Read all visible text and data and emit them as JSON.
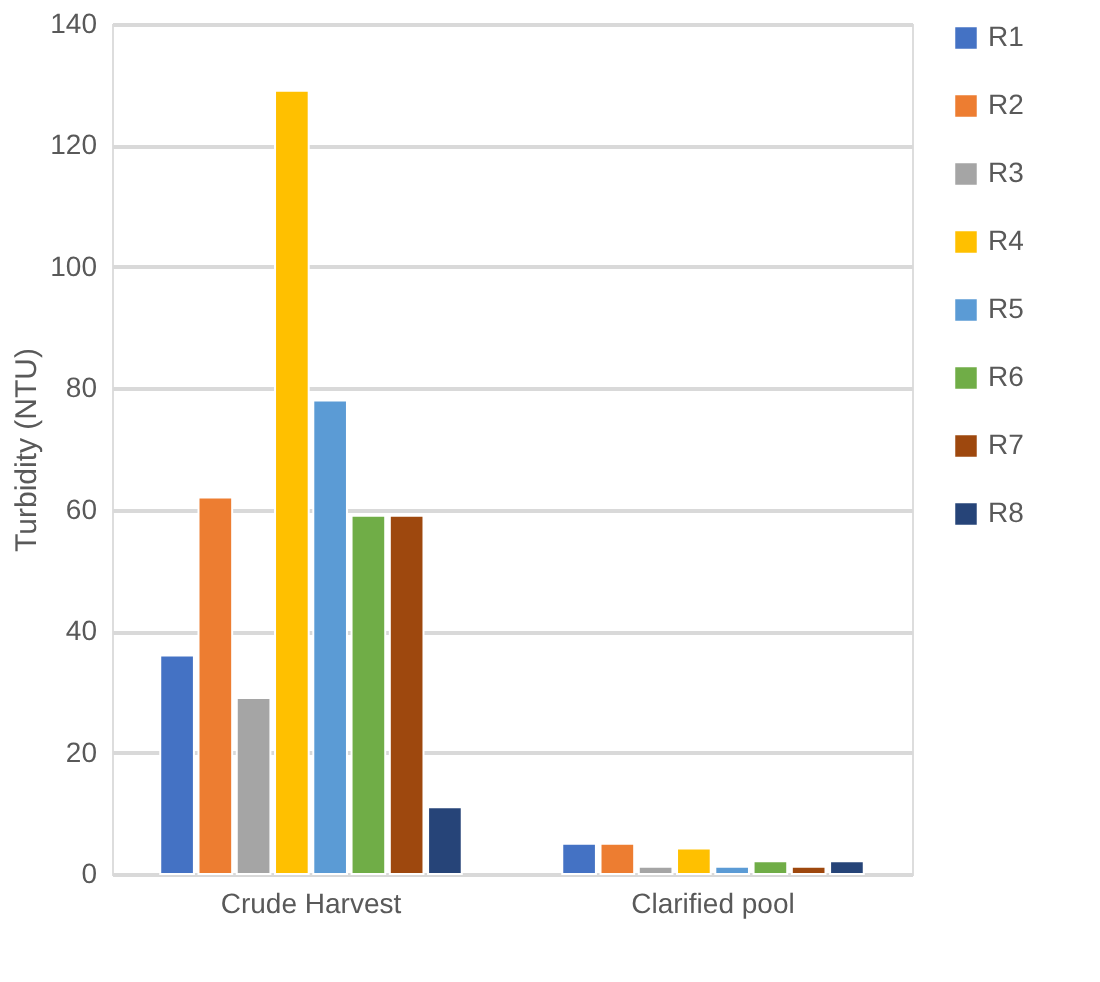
{
  "chart_data": {
    "type": "bar",
    "ylabel": "Turbidity (NTU)",
    "categories": [
      "Crude Harvest",
      "Clarified pool"
    ],
    "series": [
      {
        "name": "R1",
        "color": "#4472c4",
        "values": [
          36,
          5
        ]
      },
      {
        "name": "R2",
        "color": "#ed7d31",
        "values": [
          62,
          5
        ]
      },
      {
        "name": "R3",
        "color": "#a5a5a5",
        "values": [
          29,
          1.2
        ]
      },
      {
        "name": "R4",
        "color": "#ffc000",
        "values": [
          129,
          4.2
        ]
      },
      {
        "name": "R5",
        "color": "#5b9bd5",
        "values": [
          78,
          1.2
        ]
      },
      {
        "name": "R6",
        "color": "#70ad47",
        "values": [
          59,
          2.1
        ]
      },
      {
        "name": "R7",
        "color": "#9e480e",
        "values": [
          59,
          1.2
        ]
      },
      {
        "name": "R8",
        "color": "#264478",
        "values": [
          11,
          2.1
        ]
      }
    ],
    "ylim": [
      0,
      140
    ],
    "yticks": [
      0,
      20,
      40,
      60,
      80,
      100,
      120,
      140
    ],
    "grid": "y",
    "legend": "right"
  }
}
